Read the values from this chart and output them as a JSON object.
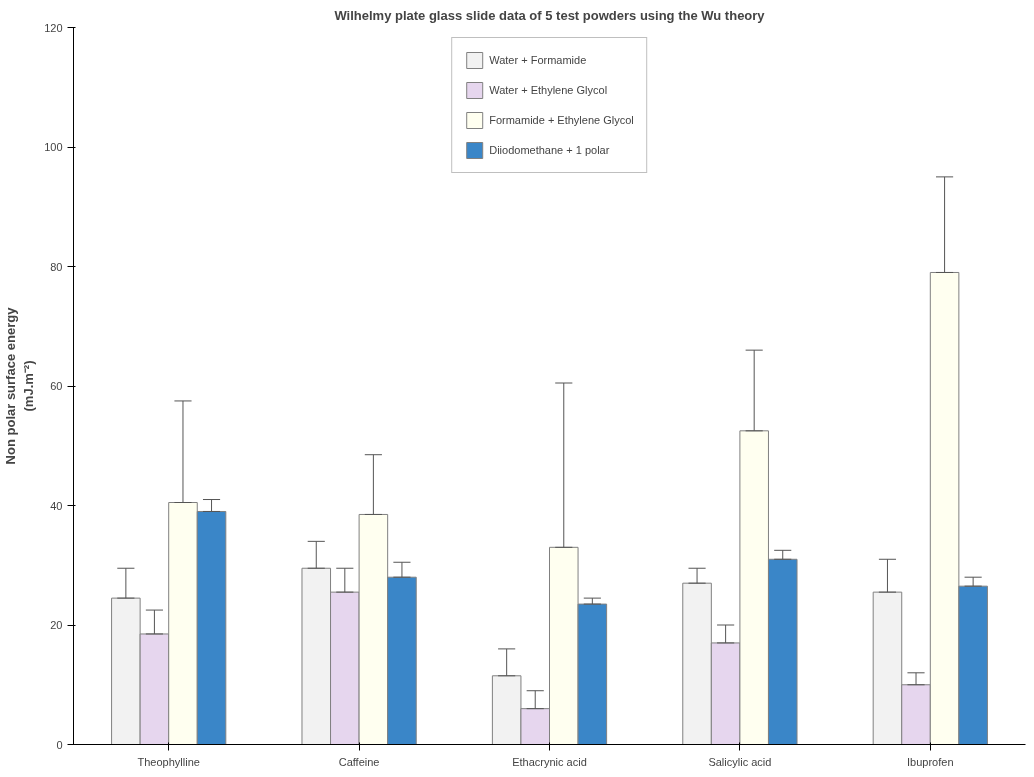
{
  "chart_data": {
    "type": "bar",
    "title": "Wilhelmy plate glass slide data of 5 test powders using the Wu theory",
    "ylabel": "Non polar surface energy\n(mJ.m⁻²)",
    "categories": [
      "Theophylline",
      "Caffeine",
      "Ethacrynic acid",
      "Salicylic acid",
      "Ibuprofen"
    ],
    "series": [
      {
        "name": "Water + Formamide",
        "color": "#f2f2f2",
        "values": [
          24.5,
          29.5,
          11.5,
          27,
          25.5
        ],
        "errors": [
          [
            24.5,
            29.5
          ],
          [
            29.5,
            34
          ],
          [
            11.5,
            16
          ],
          [
            27,
            29.5
          ],
          [
            25.5,
            31
          ]
        ]
      },
      {
        "name": "Water + Ethylene Glycol",
        "color": "#e6d6ee",
        "values": [
          18.5,
          25.5,
          6,
          17,
          10
        ],
        "errors": [
          [
            18.5,
            22.5
          ],
          [
            25.5,
            29.5
          ],
          [
            6,
            9
          ],
          [
            17,
            20
          ],
          [
            10,
            12
          ]
        ]
      },
      {
        "name": "Formamide + Ethylene Glycol",
        "color": "#fffff0",
        "values": [
          40.5,
          38.5,
          33,
          52.5,
          79
        ],
        "errors": [
          [
            40.5,
            57.5
          ],
          [
            38.5,
            48.5
          ],
          [
            33,
            60.5
          ],
          [
            52.5,
            66
          ],
          [
            79,
            95
          ]
        ]
      },
      {
        "name": "Diiodomethane + 1 polar",
        "color": "#3a86c8",
        "values": [
          39,
          28,
          23.5,
          31,
          26.5
        ],
        "errors": [
          [
            39,
            41
          ],
          [
            28,
            30.5
          ],
          [
            23.5,
            24.5
          ],
          [
            31,
            32.5
          ],
          [
            26.5,
            28
          ]
        ]
      }
    ],
    "ylim": [
      0,
      120
    ],
    "yticks": [
      0,
      20,
      40,
      60,
      80,
      100,
      120
    ],
    "grid": false,
    "legend": "top"
  }
}
